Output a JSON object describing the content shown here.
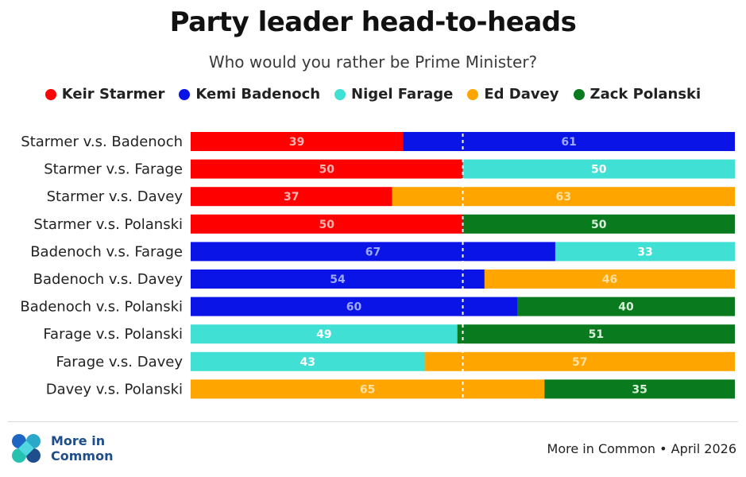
{
  "title": "Party leader head-to-heads",
  "subtitle": "Who would you rather be Prime Minister?",
  "legend": [
    {
      "name": "Keir Starmer",
      "color": "#ff0000"
    },
    {
      "name": "Kemi Badenoch",
      "color": "#0a14e6"
    },
    {
      "name": "Nigel Farage",
      "color": "#40e0d4"
    },
    {
      "name": "Ed Davey",
      "color": "#ffa500"
    },
    {
      "name": "Zack Polanski",
      "color": "#0a7a1e"
    }
  ],
  "chart_data": {
    "type": "bar",
    "stacked": true,
    "orientation": "horizontal",
    "reference_line": 50,
    "xlim": [
      0,
      100
    ],
    "rows": [
      {
        "label": "Starmer v.s. Badenoch",
        "left": {
          "party": "Keir Starmer",
          "value": 39
        },
        "right": {
          "party": "Kemi Badenoch",
          "value": 61
        }
      },
      {
        "label": "Starmer v.s. Farage",
        "left": {
          "party": "Keir Starmer",
          "value": 50
        },
        "right": {
          "party": "Nigel Farage",
          "value": 50
        }
      },
      {
        "label": "Starmer v.s. Davey",
        "left": {
          "party": "Keir Starmer",
          "value": 37
        },
        "right": {
          "party": "Ed Davey",
          "value": 63
        }
      },
      {
        "label": "Starmer v.s. Polanski",
        "left": {
          "party": "Keir Starmer",
          "value": 50
        },
        "right": {
          "party": "Zack Polanski",
          "value": 50
        }
      },
      {
        "label": "Badenoch v.s. Farage",
        "left": {
          "party": "Kemi Badenoch",
          "value": 67
        },
        "right": {
          "party": "Nigel Farage",
          "value": 33
        }
      },
      {
        "label": "Badenoch v.s. Davey",
        "left": {
          "party": "Kemi Badenoch",
          "value": 54
        },
        "right": {
          "party": "Ed Davey",
          "value": 46
        }
      },
      {
        "label": "Badenoch v.s. Polanski",
        "left": {
          "party": "Kemi Badenoch",
          "value": 60
        },
        "right": {
          "party": "Zack Polanski",
          "value": 40
        }
      },
      {
        "label": "Farage v.s. Polanski",
        "left": {
          "party": "Nigel Farage",
          "value": 49
        },
        "right": {
          "party": "Zack Polanski",
          "value": 51
        }
      },
      {
        "label": "Farage v.s. Davey",
        "left": {
          "party": "Nigel Farage",
          "value": 43
        },
        "right": {
          "party": "Ed Davey",
          "value": 57
        }
      },
      {
        "label": "Davey v.s. Polanski",
        "left": {
          "party": "Ed Davey",
          "value": 65
        },
        "right": {
          "party": "Zack Polanski",
          "value": 35
        }
      }
    ]
  },
  "footer": {
    "logo_line1": "More in",
    "logo_line2": "Common",
    "logo_icon": "more-in-common-logo",
    "source": "More in Common • April 2026"
  }
}
